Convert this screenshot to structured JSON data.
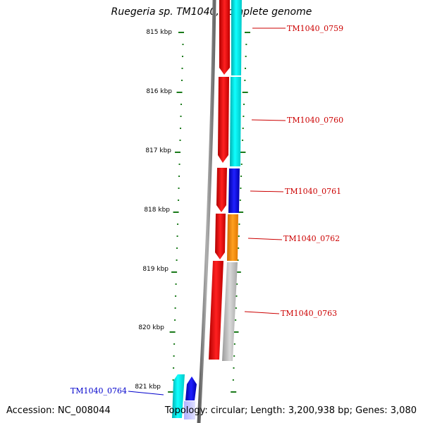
{
  "title": "Ruegeria sp. TM1040, complete genome",
  "accession_text": "Accession: NC_008044",
  "topology_text": "Topology: circular; Length: 3,200,938 bp; Genes: 3,080",
  "colors": {
    "backbone": "#7a7a7a",
    "tick": "#1a7a1a",
    "label_red": "#cc0000",
    "label_blue": "#0000cc",
    "red": "#ff0000",
    "cyan": "#00e5e5",
    "blue": "#1010e0",
    "orange": "#ff8c00",
    "gray": "#bdbdbd",
    "light_blue": "#c8c8ff"
  },
  "scale": {
    "unit": "kbp",
    "major_ticks": [
      "815 kbp",
      "816 kbp",
      "817 kbp",
      "818 kbp",
      "819 kbp",
      "820 kbp",
      "821 kbp"
    ]
  },
  "genes": [
    {
      "label": "TM1040_0759",
      "strand": "plus",
      "color": "cyan"
    },
    {
      "label": "TM1040_0760",
      "strand": "plus",
      "color": "cyan"
    },
    {
      "label": "TM1040_0761",
      "strand": "plus",
      "color": "blue"
    },
    {
      "label": "TM1040_0762",
      "strand": "plus",
      "color": "orange"
    },
    {
      "label": "TM1040_0763",
      "strand": "plus",
      "color": "gray"
    },
    {
      "label": "TM1040_0764",
      "strand": "minus",
      "color": "cyan"
    }
  ]
}
